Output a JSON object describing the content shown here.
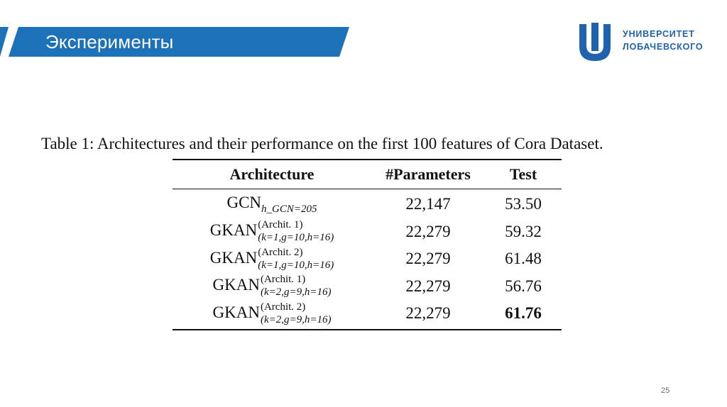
{
  "header": {
    "title": "Эксперименты",
    "band_color": "#1d71b8",
    "accent_color": "#1d71b8"
  },
  "logo": {
    "line1": "УНИВЕРСИТЕТ",
    "line2": "ЛОБАЧЕВСКОГО",
    "color": "#1f62ad"
  },
  "table": {
    "caption": "Table 1: Architectures and their performance on the first 100 features of Cora Dataset.",
    "columns": [
      "Architecture",
      "#Parameters",
      "Test"
    ],
    "rows": [
      {
        "arch": "GCN",
        "arch_sub": "h_GCN=205",
        "arch_sup": "",
        "params": "22,147",
        "test": "53.50",
        "best": false
      },
      {
        "arch": "GKAN",
        "arch_sup": "(Archit. 1)",
        "arch_sub": "(k=1,g=10,h=16)",
        "params": "22,279",
        "test": "59.32",
        "best": false
      },
      {
        "arch": "GKAN",
        "arch_sup": "(Archit. 2)",
        "arch_sub": "(k=1,g=10,h=16)",
        "params": "22,279",
        "test": "61.48",
        "best": false
      },
      {
        "arch": "GKAN",
        "arch_sup": "(Archit. 1)",
        "arch_sub": "(k=2,g=9,h=16)",
        "params": "22,279",
        "test": "56.76",
        "best": false
      },
      {
        "arch": "GKAN",
        "arch_sup": "(Archit. 2)",
        "arch_sub": "(k=2,g=9,h=16)",
        "params": "22,279",
        "test": "61.76",
        "best": true
      }
    ]
  },
  "page_number": "25"
}
